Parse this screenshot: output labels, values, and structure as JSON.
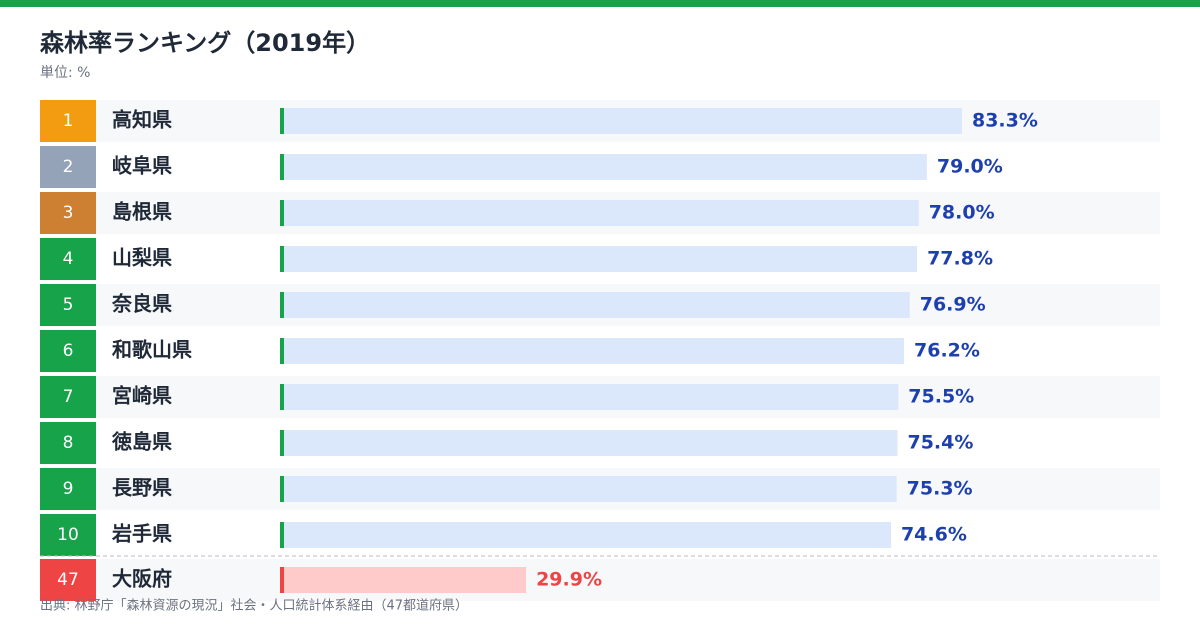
{
  "chart_data": {
    "type": "bar",
    "title": "森林率ランキング（2019年）",
    "subtitle": "単位: %",
    "ranks": [
      1,
      2,
      3,
      4,
      5,
      6,
      7,
      8,
      9,
      10,
      47
    ],
    "rank_colors": [
      "#f39c12",
      "#94a3b8",
      "#cd7f32",
      "#16a34a",
      "#16a34a",
      "#16a34a",
      "#16a34a",
      "#16a34a",
      "#16a34a",
      "#16a34a",
      "#ef4444"
    ],
    "categories": [
      "高知県",
      "岐阜県",
      "島根県",
      "山梨県",
      "奈良県",
      "和歌山県",
      "宮崎県",
      "徳島県",
      "長野県",
      "岩手県",
      "大阪府"
    ],
    "values": [
      83.3,
      79.0,
      78.0,
      77.8,
      76.9,
      76.2,
      75.5,
      75.4,
      75.3,
      74.6,
      29.9
    ],
    "value_labels": [
      "83.3%",
      "79.0%",
      "78.0%",
      "77.8%",
      "76.9%",
      "76.2%",
      "75.5%",
      "75.4%",
      "75.3%",
      "74.6%",
      "29.9%"
    ],
    "color": "#dbe8fc",
    "highlight_color": "#fecaca",
    "source": "出典: 林野庁「森林資源の現況」社会・人口統計体系経由（47都道府県）"
  }
}
